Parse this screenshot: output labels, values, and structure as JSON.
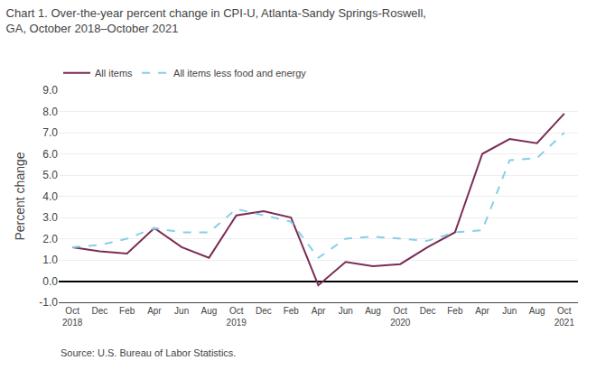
{
  "chart_data": {
    "type": "line",
    "title": "Chart 1. Over-the-year percent change in CPI-U, Atlanta-Sandy Springs-Roswell,\nGA, October 2018–October 2021",
    "ylabel": "Percent change",
    "annotations": [
      "Source: U.S. Bureau of Labor Statistics."
    ],
    "categories": [
      "Oct\n2018",
      "Dec",
      "Feb",
      "Apr",
      "Jun",
      "Aug",
      "Oct\n2019",
      "Dec",
      "Feb",
      "Apr",
      "Jun",
      "Aug",
      "Oct\n2020",
      "Dec",
      "Feb",
      "Apr",
      "Jun",
      "Aug",
      "Oct\n2021"
    ],
    "series": [
      {
        "name": "All items",
        "color": "#7B2D55",
        "line_style": "solid",
        "values": [
          1.6,
          1.4,
          1.3,
          2.5,
          1.6,
          1.1,
          3.1,
          3.3,
          3.0,
          -0.2,
          0.9,
          0.7,
          0.8,
          1.6,
          2.3,
          6.0,
          6.7,
          6.5,
          7.9
        ]
      },
      {
        "name": "All items less food and energy",
        "color": "#87CEEB",
        "line_style": "dashed",
        "values": [
          1.6,
          1.7,
          2.0,
          2.5,
          2.3,
          2.3,
          3.4,
          3.1,
          2.8,
          1.1,
          2.0,
          2.1,
          2.0,
          1.9,
          2.3,
          2.4,
          5.7,
          5.8,
          7.0
        ]
      }
    ],
    "ylim": [
      -1.0,
      9.0
    ],
    "yticks": [
      {
        "value": -1,
        "label": "-1.0"
      },
      {
        "value": 0,
        "label": "0.0"
      },
      {
        "value": 1,
        "label": "1.0"
      },
      {
        "value": 2,
        "label": "2.0"
      },
      {
        "value": 3,
        "label": "3.0"
      },
      {
        "value": 4,
        "label": "4.0"
      },
      {
        "value": 5,
        "label": "5.0"
      },
      {
        "value": 6,
        "label": "6.0"
      },
      {
        "value": 7,
        "label": "7.0"
      },
      {
        "value": 8,
        "label": "8.0"
      },
      {
        "value": 9,
        "label": "9.0"
      }
    ],
    "grid": true,
    "legend": "top"
  }
}
